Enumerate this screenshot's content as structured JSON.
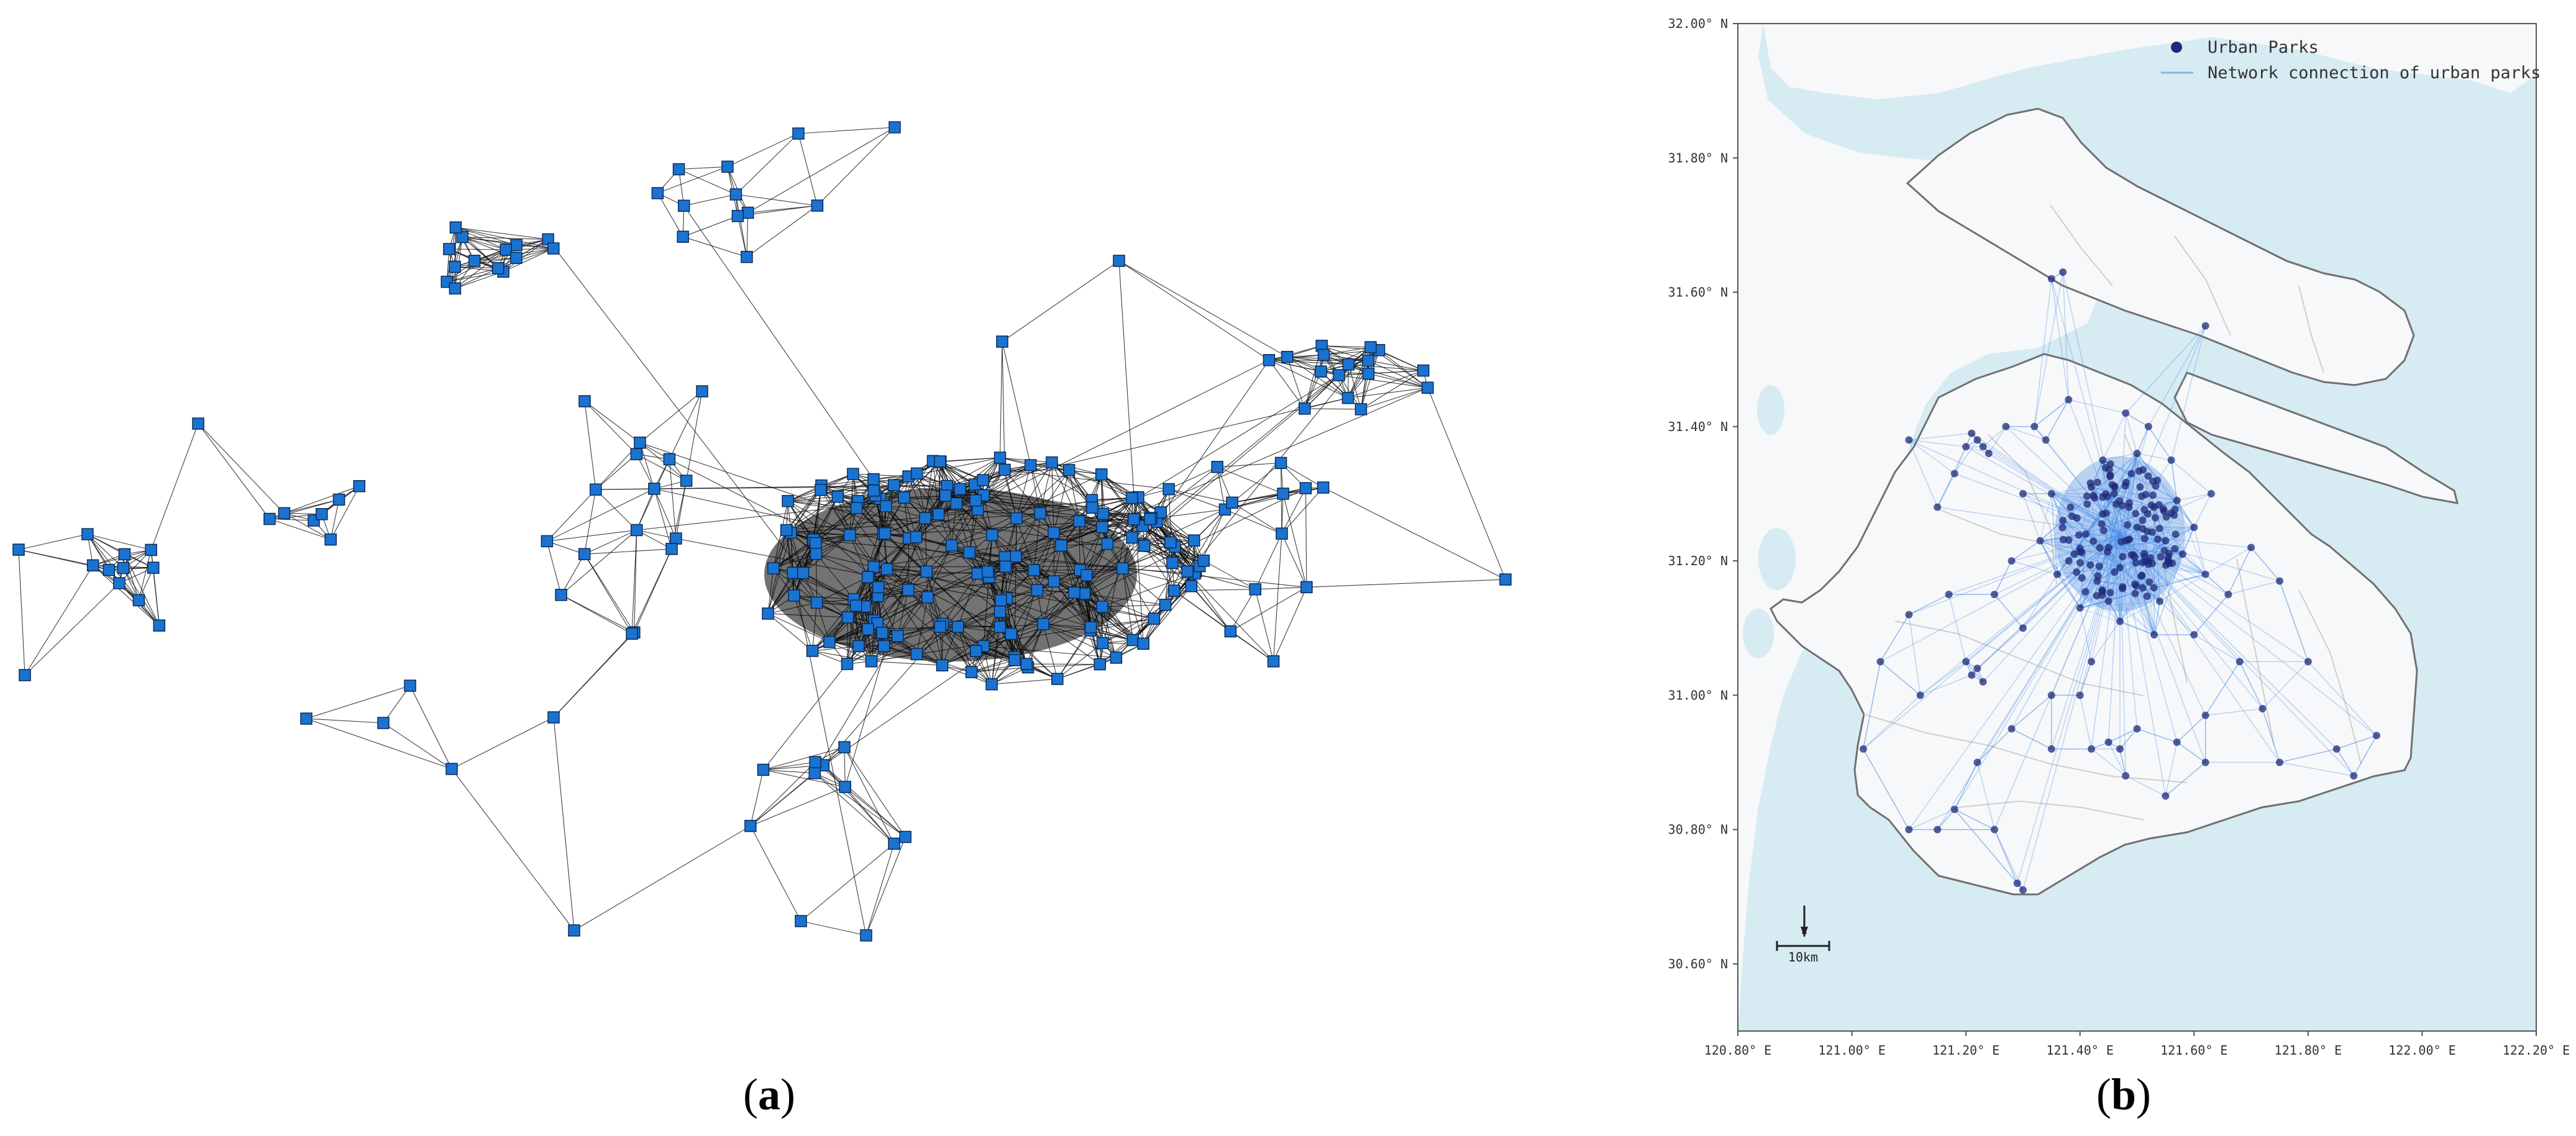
{
  "panel_a": {
    "label_open": "(",
    "label_letter": "a",
    "label_close": ")",
    "node_color": "#1a73d0",
    "node_border": "#0b2a55",
    "edge_color": "#111111"
  },
  "panel_b": {
    "label_open": "(",
    "label_letter": "b",
    "label_close": ")",
    "legend": {
      "parks_label": "Urban Parks",
      "network_label": "Network connection of urban parks"
    },
    "scale_bar": {
      "label": "10km"
    },
    "north_arrow": {
      "label": "N"
    },
    "colors": {
      "water": "#d6ebf2",
      "land": "#f7f8f9",
      "boundary": "#707070",
      "district": "#cfcfcf",
      "park": "#1f2a78",
      "network": "#4a8fe8"
    }
  },
  "chart_data": {
    "type": "scatter",
    "title": "",
    "xlabel": "",
    "ylabel": "",
    "xlim": [
      120.8,
      122.2
    ],
    "ylim": [
      30.5,
      32.0
    ],
    "x_ticks": [
      "120.80° E",
      "121.00° E",
      "121.20° E",
      "121.40° E",
      "121.60° E",
      "121.80° E",
      "122.00° E",
      "122.20° E"
    ],
    "y_ticks": [
      "30.60° N",
      "30.80° N",
      "31.00° N",
      "31.20° N",
      "31.40° N",
      "31.60° N",
      "31.80° N",
      "32.00° N"
    ],
    "x_tick_values": [
      120.8,
      121.0,
      121.2,
      121.4,
      121.6,
      121.8,
      122.0,
      122.2
    ],
    "y_tick_values": [
      30.6,
      30.8,
      31.0,
      31.2,
      31.4,
      31.6,
      31.8,
      32.0
    ],
    "grid": false,
    "legend_position": "top-right",
    "series": [
      {
        "name": "Urban Parks",
        "points": [
          [
            121.48,
            31.23
          ],
          [
            121.45,
            31.22
          ],
          [
            121.5,
            31.25
          ],
          [
            121.44,
            31.27
          ],
          [
            121.52,
            31.2
          ],
          [
            121.41,
            31.24
          ],
          [
            121.47,
            31.19
          ],
          [
            121.53,
            31.28
          ],
          [
            121.39,
            31.21
          ],
          [
            121.46,
            31.3
          ],
          [
            121.51,
            31.16
          ],
          [
            121.43,
            31.17
          ],
          [
            121.55,
            31.23
          ],
          [
            121.37,
            31.26
          ],
          [
            121.49,
            31.33
          ],
          [
            121.42,
            31.31
          ],
          [
            121.57,
            31.29
          ],
          [
            121.36,
            31.18
          ],
          [
            121.54,
            31.14
          ],
          [
            121.45,
            31.14
          ],
          [
            121.58,
            31.21
          ],
          [
            121.4,
            31.13
          ],
          [
            121.5,
            31.36
          ],
          [
            121.44,
            31.35
          ],
          [
            121.35,
            31.3
          ],
          [
            121.6,
            31.25
          ],
          [
            121.33,
            31.23
          ],
          [
            121.47,
            31.11
          ],
          [
            121.53,
            31.09
          ],
          [
            121.62,
            31.18
          ],
          [
            121.22,
            31.38
          ],
          [
            121.23,
            31.37
          ],
          [
            121.21,
            31.39
          ],
          [
            121.2,
            31.37
          ],
          [
            121.24,
            31.36
          ],
          [
            121.22,
            31.04
          ],
          [
            121.21,
            31.03
          ],
          [
            121.23,
            31.02
          ],
          [
            121.2,
            31.05
          ],
          [
            121.35,
            31.0
          ],
          [
            121.4,
            31.0
          ],
          [
            121.42,
            31.05
          ],
          [
            121.45,
            30.93
          ],
          [
            121.47,
            30.92
          ],
          [
            121.3,
            31.1
          ],
          [
            121.28,
            31.2
          ],
          [
            121.25,
            31.15
          ],
          [
            121.17,
            31.15
          ],
          [
            121.1,
            31.12
          ],
          [
            121.15,
            31.28
          ],
          [
            121.18,
            31.33
          ],
          [
            121.3,
            31.3
          ],
          [
            121.34,
            31.38
          ],
          [
            121.38,
            31.44
          ],
          [
            121.32,
            31.4
          ],
          [
            121.27,
            31.4
          ],
          [
            121.6,
            31.09
          ],
          [
            121.66,
            31.15
          ],
          [
            121.7,
            31.22
          ],
          [
            121.75,
            31.17
          ],
          [
            121.68,
            31.05
          ],
          [
            121.72,
            30.98
          ],
          [
            121.8,
            31.05
          ],
          [
            121.62,
            30.97
          ],
          [
            121.57,
            30.93
          ],
          [
            121.5,
            30.95
          ],
          [
            121.42,
            30.92
          ],
          [
            121.35,
            30.92
          ],
          [
            121.28,
            30.95
          ],
          [
            121.22,
            30.9
          ],
          [
            121.18,
            30.83
          ],
          [
            121.25,
            30.8
          ],
          [
            121.29,
            30.72
          ],
          [
            121.3,
            30.71
          ],
          [
            121.15,
            30.8
          ],
          [
            121.1,
            30.8
          ],
          [
            121.02,
            30.92
          ],
          [
            121.05,
            31.05
          ],
          [
            121.12,
            31.0
          ],
          [
            121.48,
            30.88
          ],
          [
            121.55,
            30.85
          ],
          [
            121.62,
            30.9
          ],
          [
            121.75,
            30.9
          ],
          [
            121.85,
            30.92
          ],
          [
            121.92,
            30.94
          ],
          [
            121.88,
            30.88
          ],
          [
            121.35,
            31.62
          ],
          [
            121.37,
            31.63
          ],
          [
            121.62,
            31.55
          ],
          [
            121.1,
            31.38
          ],
          [
            121.48,
            31.42
          ],
          [
            121.52,
            31.4
          ],
          [
            121.56,
            31.35
          ],
          [
            121.63,
            31.3
          ]
        ]
      },
      {
        "name": "Network connection of urban parks",
        "hub": [
          121.47,
          31.24
        ]
      }
    ]
  }
}
